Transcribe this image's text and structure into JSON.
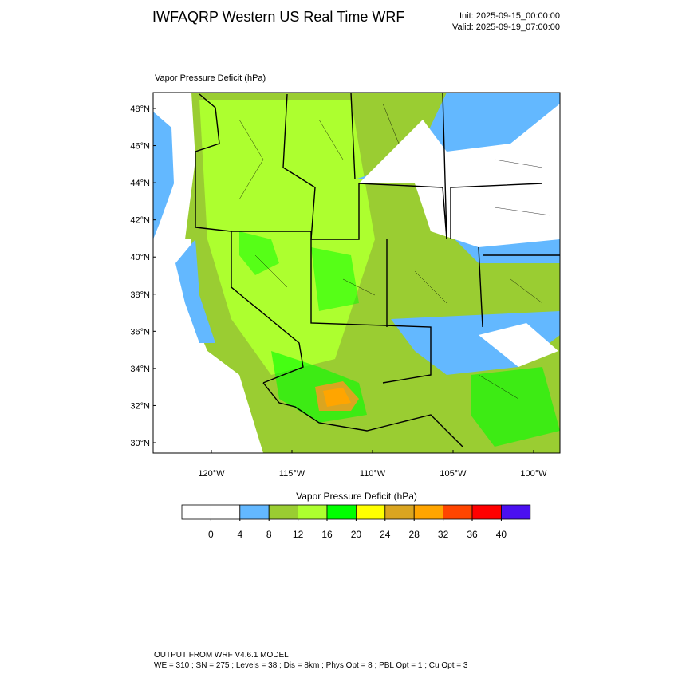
{
  "header": {
    "title": "IWFAQRP Western US Real Time WRF",
    "init": "Init: 2025-09-15_00:00:00",
    "valid": "Valid: 2025-09-19_07:00:00"
  },
  "map": {
    "label": "Vapor Pressure Deficit   (hPa)",
    "lat_ticks": [
      {
        "value": 48,
        "label": "48°N"
      },
      {
        "value": 46,
        "label": "46°N"
      },
      {
        "value": 44,
        "label": "44°N"
      },
      {
        "value": 42,
        "label": "42°N"
      },
      {
        "value": 40,
        "label": "40°N"
      },
      {
        "value": 38,
        "label": "38°N"
      },
      {
        "value": 36,
        "label": "36°N"
      },
      {
        "value": 34,
        "label": "34°N"
      },
      {
        "value": 32,
        "label": "32°N"
      },
      {
        "value": 30,
        "label": "30°N"
      }
    ],
    "lon_ticks": [
      {
        "value": -120,
        "label": "120°W"
      },
      {
        "value": -115,
        "label": "115°W"
      },
      {
        "value": -110,
        "label": "110°W"
      },
      {
        "value": -105,
        "label": "105°W"
      },
      {
        "value": -100,
        "label": "100°W"
      }
    ]
  },
  "colorbar": {
    "title": "Vapor Pressure Deficit  (hPa)",
    "colors": [
      "#ffffff",
      "#ffffff",
      "#63b8ff",
      "#9acd32",
      "#adff2f",
      "#00ff00",
      "#ffff00",
      "#daa520",
      "#ffa500",
      "#ff4500",
      "#ff0000",
      "#4a10f0"
    ],
    "ticks": [
      0,
      4,
      8,
      12,
      16,
      20,
      24,
      28,
      32,
      36,
      40
    ]
  },
  "footer": {
    "line1": "OUTPUT FROM WRF V4.6.1 MODEL",
    "line2": "WE = 310 ; SN = 275 ; Levels = 38 ; Dis = 8km ; Phys Opt = 8 ; PBL Opt = 1 ; Cu Opt = 3"
  }
}
